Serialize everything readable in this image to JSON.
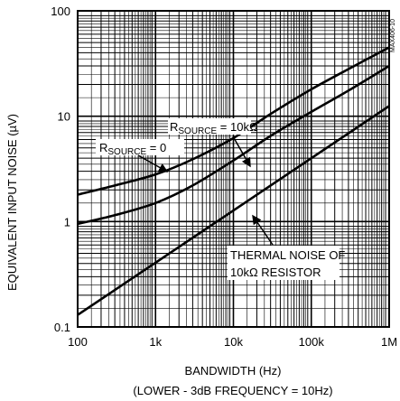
{
  "chart_data": {
    "type": "line",
    "x_scale": "log",
    "y_scale": "log",
    "xlabel": "BANDWIDTH (Hz)",
    "xlabel_note": "(LOWER - 3dB FREQUENCY = 10Hz)",
    "ylabel": "EQUIVALENT INPUT NOISE (µV)",
    "xlim": [
      100,
      1000000
    ],
    "ylim": [
      0.1,
      100
    ],
    "x_ticks": [
      "100",
      "1k",
      "10k",
      "100k",
      "1M"
    ],
    "y_ticks": [
      "0.1",
      "1",
      "10",
      "100"
    ],
    "grid": true,
    "figure_code": "MAX406-10",
    "series": [
      {
        "name": "RSOURCE = 10kΩ",
        "label_main": "R",
        "label_sub": "SOURCE",
        "label_rest": " = 10kΩ",
        "x": [
          100,
          300,
          1000,
          3000,
          10000,
          30000,
          100000,
          300000,
          1000000
        ],
        "y": [
          1.8,
          2.2,
          2.8,
          3.9,
          6.2,
          10.5,
          18,
          28,
          45
        ]
      },
      {
        "name": "RSOURCE = 0",
        "label_main": "R",
        "label_sub": "SOURCE",
        "label_rest": " = 0",
        "x": [
          100,
          300,
          1000,
          3000,
          10000,
          30000,
          100000,
          300000,
          1000000
        ],
        "y": [
          0.95,
          1.15,
          1.5,
          2.2,
          3.8,
          6.5,
          11,
          17.5,
          30
        ]
      },
      {
        "name": "THERMAL NOISE OF 10kΩ RESISTOR",
        "label_line1": "THERMAL NOISE OF",
        "label_line2": "10kΩ RESISTOR",
        "x": [
          100,
          1000000
        ],
        "y": [
          0.13,
          12.5
        ]
      }
    ]
  }
}
